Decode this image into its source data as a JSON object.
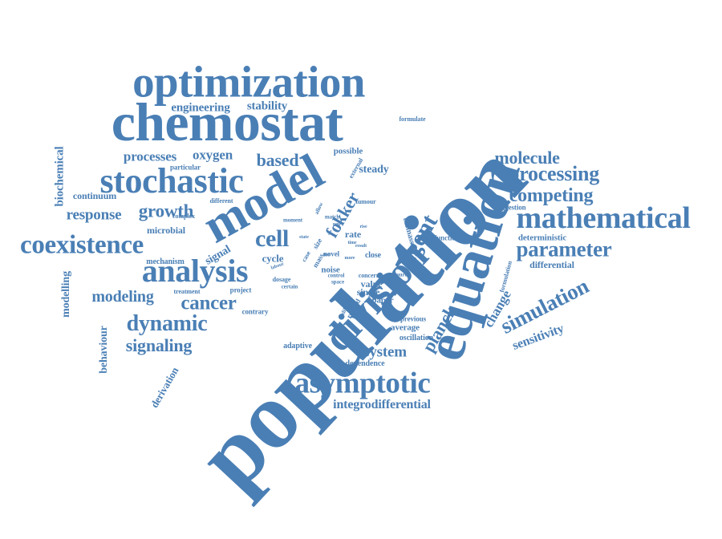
{
  "theme": {
    "word_color": "#4a7fb5",
    "background": "#ffffff"
  },
  "words": [
    "population",
    "equation",
    "chemostat",
    "optimization",
    "model",
    "stochastic",
    "mathematical",
    "division",
    "asymptotic",
    "analysis",
    "coexistence",
    "cell",
    "processing",
    "parameter",
    "simulation",
    "agent",
    "competing",
    "molecule",
    "dynamic",
    "signaling",
    "cancer",
    "modeling",
    "growth",
    "response",
    "based",
    "planck",
    "fokker",
    "system",
    "integrodifferential",
    "sensitivity",
    "change",
    "processes",
    "oxygen",
    "stability",
    "engineering",
    "biochemical",
    "continuum",
    "modelling",
    "behaviour",
    "steady",
    "differential",
    "deterministic",
    "microbial",
    "mechanism",
    "signal",
    "cycle",
    "derivation",
    "single",
    "paper",
    "value",
    "noise",
    "average",
    "previous",
    "oscillation",
    "dependence",
    "adaptive",
    "contrary",
    "project",
    "treatment",
    "possible",
    "particular",
    "different",
    "complex",
    "rate",
    "close",
    "suggestion",
    "function",
    "formulate",
    "formulation",
    "biomass",
    "tumour",
    "external",
    "allow",
    "match",
    "moment",
    "size",
    "case",
    "mass",
    "dosage",
    "certain",
    "control",
    "space",
    "novel",
    "concern",
    "related",
    "dilution",
    "source",
    "result",
    "time",
    "state",
    "labour",
    "use",
    "rise",
    "more",
    "new"
  ]
}
